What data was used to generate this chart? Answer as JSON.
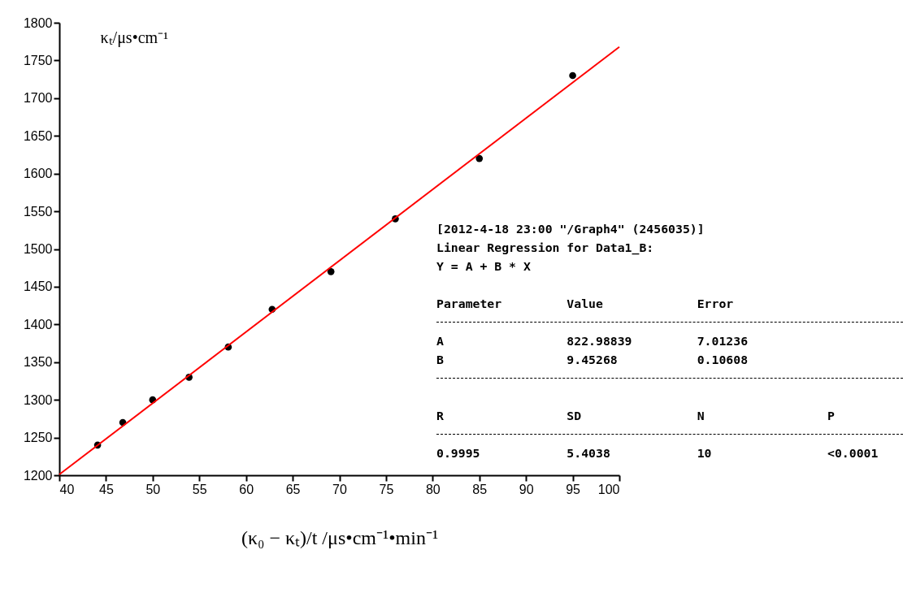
{
  "chart_data": {
    "type": "scatter",
    "xlabel": "(κ₀ − κₜ)/t /μs•cm⁻¹•min⁻¹",
    "ylabel": "κₜ/μs•cm⁻¹",
    "xlim": [
      40,
      100
    ],
    "xticks": [
      40,
      45,
      50,
      55,
      60,
      65,
      70,
      75,
      80,
      85,
      90,
      95,
      100
    ],
    "ylim": [
      1200,
      1800
    ],
    "yticks": [
      1200,
      1250,
      1300,
      1350,
      1400,
      1450,
      1500,
      1550,
      1600,
      1650,
      1700,
      1750,
      1800
    ],
    "grid": false,
    "series": [
      {
        "marker": "circle",
        "color": "#000000",
        "x": [
          44.1,
          46.8,
          50,
          53.9,
          58.1,
          62.8,
          69.1,
          76,
          85,
          95
        ],
        "values": [
          1240,
          1270,
          1300,
          1330,
          1370,
          1420,
          1470,
          1540,
          1620,
          1730
        ]
      },
      {
        "type": "line",
        "color": "#ff0000",
        "x": [
          40,
          100
        ],
        "values": [
          1201,
          1768
        ]
      }
    ],
    "annotations": [
      "[2012-4-18 23:00 \"/Graph4\" (2456035)]",
      "Linear Regression for Data1_B:",
      "Y = A + B * X",
      "Parameter         Value             Error",
      "A                 822.98839         7.01236",
      "B                 9.45268           0.10608",
      "R                 SD                N                 P",
      "0.9995            5.4038            10                <0.0001"
    ]
  }
}
